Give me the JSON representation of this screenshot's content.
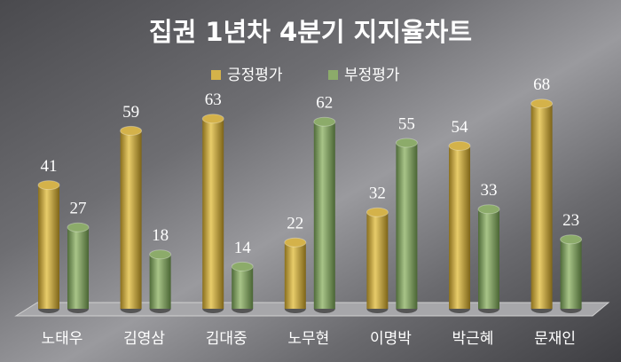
{
  "chart_data": {
    "type": "bar",
    "title": "집권 1년차 4분기 지지율차트",
    "categories": [
      "노태우",
      "김영삼",
      "김대중",
      "노무현",
      "이명박",
      "박근혜",
      "문재인"
    ],
    "series": [
      {
        "name": "긍정평가",
        "color": "#d4b24a",
        "values": [
          41,
          59,
          63,
          22,
          32,
          54,
          68
        ]
      },
      {
        "name": "부정평가",
        "color": "#8cab6a",
        "values": [
          27,
          18,
          14,
          62,
          55,
          33,
          23
        ]
      }
    ],
    "legend": "top"
  }
}
